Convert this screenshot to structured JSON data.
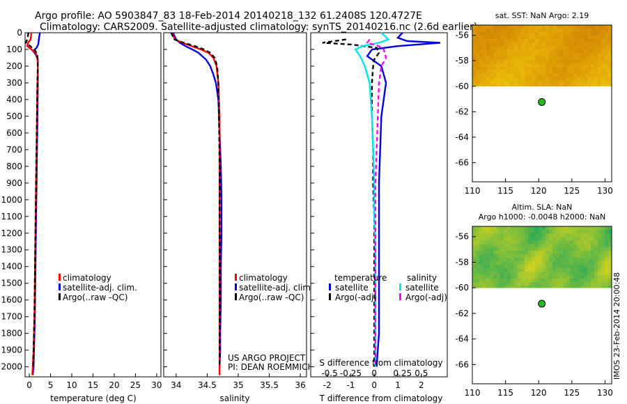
{
  "header": {
    "line1": "Argo profile: AO 5903847_83 18-Feb-2014 20140218_132 61.2408S 120.4727E",
    "line2": "Climatology: CARS2009. Satellite-adjusted climatology: synTS_20140216.nc (2.6d earlier)"
  },
  "colors": {
    "climatology": "#ff0000",
    "satellite": "#0000dd",
    "argo": "#000000",
    "sal_satellite": "#00e5e5",
    "sal_argo": "#ff00ff",
    "float_marker": "#22bb22"
  },
  "chart_data": [
    {
      "id": "temperature",
      "type": "line",
      "xlabel": "temperature (deg C)",
      "ylabel": "",
      "xlim": [
        -1,
        31
      ],
      "ylim": [
        2060,
        0
      ],
      "xticks": [
        "0",
        "5",
        "10",
        "15",
        "20",
        "25",
        "30"
      ],
      "xtick_values": [
        0,
        5,
        10,
        15,
        20,
        25,
        30
      ],
      "yticks": [
        "0",
        "100",
        "200",
        "300",
        "400",
        "500",
        "600",
        "700",
        "800",
        "900",
        "1000",
        "1100",
        "1200",
        "1300",
        "1400",
        "1500",
        "1600",
        "1700",
        "1800",
        "1900",
        "2000"
      ],
      "ytick_values": [
        0,
        100,
        200,
        300,
        400,
        500,
        600,
        700,
        800,
        900,
        1000,
        1100,
        1200,
        1300,
        1400,
        1500,
        1600,
        1700,
        1800,
        1900,
        2000
      ],
      "legend": {
        "position": "bottom-center",
        "entries": [
          "climatology",
          "satellite-adj. clim.",
          "Argo(..raw -QC)"
        ]
      },
      "series": [
        {
          "name": "satellite-adj. clim.",
          "color": "#0000dd",
          "dash": "",
          "x": [
            2.5,
            2.3,
            2.2,
            2.1,
            1.7,
            0.9,
            1.5,
            2.0,
            2.0,
            2.0,
            1.9,
            1.8,
            1.7,
            1.6,
            1.5,
            1.4,
            1.3,
            1.2,
            1.1,
            1.0,
            0.8
          ],
          "y": [
            0,
            30,
            50,
            70,
            90,
            110,
            130,
            160,
            200,
            300,
            500,
            700,
            900,
            1100,
            1300,
            1500,
            1700,
            1800,
            1900,
            2000,
            2050
          ]
        },
        {
          "name": "climatology",
          "color": "#ff0000",
          "dash": "",
          "x": [
            0.5,
            0.3,
            -0.3,
            -0.5,
            0.5,
            1.5,
            1.9,
            2.0,
            1.9,
            1.8,
            1.7,
            1.6,
            1.5,
            1.4,
            1.3,
            1.2,
            1.1,
            1.0,
            0.8,
            0.7
          ],
          "y": [
            0,
            40,
            60,
            80,
            100,
            120,
            150,
            200,
            300,
            500,
            700,
            900,
            1100,
            1300,
            1500,
            1700,
            1800,
            1900,
            2000,
            2050
          ]
        },
        {
          "name": "Argo(..raw -QC)",
          "color": "#000000",
          "dash": "6 4",
          "x": [
            -0.2,
            -0.5,
            -0.8,
            0.2,
            1.2,
            1.9,
            2.0,
            1.9,
            1.8,
            1.7,
            1.6,
            1.5,
            1.4,
            1.3,
            1.2,
            1.1,
            1.0,
            0.9
          ],
          "y": [
            0,
            40,
            60,
            80,
            100,
            130,
            200,
            300,
            500,
            700,
            900,
            1100,
            1300,
            1500,
            1700,
            1800,
            1900,
            2000
          ]
        }
      ]
    },
    {
      "id": "salinity",
      "type": "line",
      "xlabel": "salinity",
      "xlim": [
        33.8,
        36.1
      ],
      "ylim": [
        2060,
        0
      ],
      "xticks": [
        "34",
        "34.5",
        "35",
        "35.5",
        "36"
      ],
      "xtick_values": [
        34,
        34.5,
        35,
        35.5,
        36
      ],
      "legend": {
        "position": "bottom-center",
        "entries": [
          "climatology",
          "satellite-adj. clim.",
          "Argo(..raw -QC)"
        ]
      },
      "annotation": [
        "US ARGO PROJECT",
        "PI: DEAN ROEMMICH"
      ],
      "series": [
        {
          "name": "satellite-adj. clim.",
          "color": "#0000dd",
          "dash": "",
          "x": [
            33.95,
            34.0,
            34.06,
            34.15,
            34.26,
            34.36,
            34.48,
            34.55,
            34.6,
            34.64,
            34.68,
            34.7,
            34.72,
            34.73,
            34.73,
            34.72,
            34.72,
            34.71,
            34.71,
            34.7
          ],
          "y": [
            0,
            40,
            60,
            80,
            100,
            120,
            160,
            200,
            250,
            300,
            400,
            600,
            800,
            1000,
            1200,
            1400,
            1600,
            1800,
            1900,
            2000
          ]
        },
        {
          "name": "climatology",
          "color": "#ff0000",
          "dash": "",
          "x": [
            33.93,
            33.98,
            34.1,
            34.25,
            34.4,
            34.52,
            34.6,
            34.65,
            34.68,
            34.7,
            34.7,
            34.7,
            34.7,
            34.7,
            34.7,
            34.7
          ],
          "y": [
            0,
            40,
            60,
            80,
            100,
            120,
            150,
            200,
            300,
            500,
            800,
            1100,
            1400,
            1700,
            1900,
            2050
          ]
        },
        {
          "name": "Argo(..raw -QC)",
          "color": "#000000",
          "dash": "6 4",
          "x": [
            33.92,
            33.97,
            34.12,
            34.3,
            34.45,
            34.55,
            34.62,
            34.66,
            34.68,
            34.69,
            34.7,
            34.7,
            34.7,
            34.7,
            34.7,
            34.7
          ],
          "y": [
            0,
            40,
            60,
            80,
            100,
            120,
            150,
            200,
            300,
            500,
            800,
            1100,
            1400,
            1700,
            1900,
            2000
          ]
        }
      ]
    },
    {
      "id": "difference",
      "type": "line",
      "xlabel": "T difference from climatology",
      "xlabel_top": "S difference from climatology",
      "xlim": [
        -2.7,
        3.1
      ],
      "ylim": [
        2060,
        0
      ],
      "xticks": [
        "-2",
        "-1",
        "0",
        "1",
        "2"
      ],
      "xtick_values": [
        -2,
        -1,
        0,
        1,
        2
      ],
      "xticks_sal": [
        "-0.5",
        "-0.25",
        "0",
        "0.25",
        "0.5"
      ],
      "xtick_sal_positions": [
        -1.9,
        -1.0,
        0,
        1.2,
        2.0
      ],
      "legend": {
        "position": "top-center",
        "title_t": "temperature",
        "title_s": "salinity",
        "entries_t": [
          "satellite",
          "Argo(-adj)"
        ],
        "entries_s": [
          "satellite",
          "Argo(-adj)"
        ]
      },
      "series": [
        {
          "name": "temperature satellite",
          "color": "#0000dd",
          "dash": "",
          "x": [
            1.2,
            1.0,
            1.4,
            2.8,
            1.0,
            -0.1,
            -0.3,
            0.3,
            0.5,
            0.3,
            0.25,
            0.2,
            0.2,
            0.2,
            0.2,
            0.2,
            0.2,
            0.15,
            0.1
          ],
          "y": [
            0,
            30,
            50,
            60,
            80,
            100,
            140,
            200,
            300,
            500,
            700,
            900,
            1100,
            1300,
            1500,
            1700,
            1800,
            1900,
            2000
          ]
        },
        {
          "name": "temperature Argo(-adj)",
          "color": "#000000",
          "dash": "6 4",
          "x": [
            -1.2,
            -2.2,
            -1.0,
            0.1,
            0.2,
            0.0,
            -0.05,
            -0.1,
            -0.1,
            -0.05,
            -0.05,
            0.0,
            0.0,
            0.0,
            0.0,
            0.0
          ],
          "y": [
            40,
            60,
            70,
            90,
            120,
            160,
            200,
            300,
            500,
            700,
            900,
            1100,
            1300,
            1500,
            1700,
            2000
          ]
        },
        {
          "name": "salinity satellite",
          "color": "#00e5e5",
          "dash": "",
          "x": [
            0.3,
            0.6,
            0.2,
            -0.5,
            -0.8,
            -0.6,
            -0.4,
            -0.2,
            -0.1,
            -0.05,
            0.0,
            0.0,
            0.05,
            0.05,
            0.05,
            0.05
          ],
          "y": [
            0,
            40,
            60,
            80,
            100,
            140,
            200,
            300,
            500,
            700,
            900,
            1100,
            1300,
            1500,
            1700,
            2000
          ]
        },
        {
          "name": "salinity Argo(-adj)",
          "color": "#ff00ff",
          "dash": "6 4",
          "x": [
            -0.2,
            -0.3,
            0.2,
            0.4,
            0.5,
            0.3,
            0.2,
            0.15,
            0.1,
            0.05,
            0.05,
            0.05,
            0.05,
            0.05
          ],
          "y": [
            40,
            60,
            80,
            100,
            150,
            200,
            300,
            500,
            700,
            900,
            1200,
            1500,
            1800,
            2000
          ]
        }
      ]
    },
    {
      "id": "sst_map",
      "type": "heatmap",
      "title": "sat. SST: NaN Argo: 2.19",
      "xlim": [
        110,
        131
      ],
      "ylim": [
        -67.5,
        -55.2
      ],
      "xticks": [
        "110",
        "115",
        "120",
        "125",
        "130"
      ],
      "xtick_values": [
        110,
        115,
        120,
        125,
        130
      ],
      "yticks": [
        "-56",
        "-58",
        "-60",
        "-62",
        "-64",
        "-66"
      ],
      "ytick_values": [
        -56,
        -58,
        -60,
        -62,
        -64,
        -66
      ],
      "data_lat_range": [
        -60,
        -55.2
      ],
      "marker": {
        "lon": 120.47,
        "lat": -61.24
      }
    },
    {
      "id": "sla_map",
      "type": "heatmap",
      "title": "Altim. SLA: NaN",
      "subtitle": "Argo h1000: -0.0048 h2000: NaN",
      "xlim": [
        110,
        131
      ],
      "ylim": [
        -67.5,
        -55.2
      ],
      "xticks": [
        "110",
        "115",
        "120",
        "125",
        "130"
      ],
      "xtick_values": [
        110,
        115,
        120,
        125,
        130
      ],
      "yticks": [
        "-56",
        "-58",
        "-60",
        "-62",
        "-64",
        "-66"
      ],
      "ytick_values": [
        -56,
        -58,
        -60,
        -62,
        -64,
        -66
      ],
      "data_lat_range": [
        -60,
        -55.2
      ],
      "marker": {
        "lon": 120.47,
        "lat": -61.24
      }
    }
  ],
  "watermark": "IMOS 23-Feb-2014 20:00:48"
}
